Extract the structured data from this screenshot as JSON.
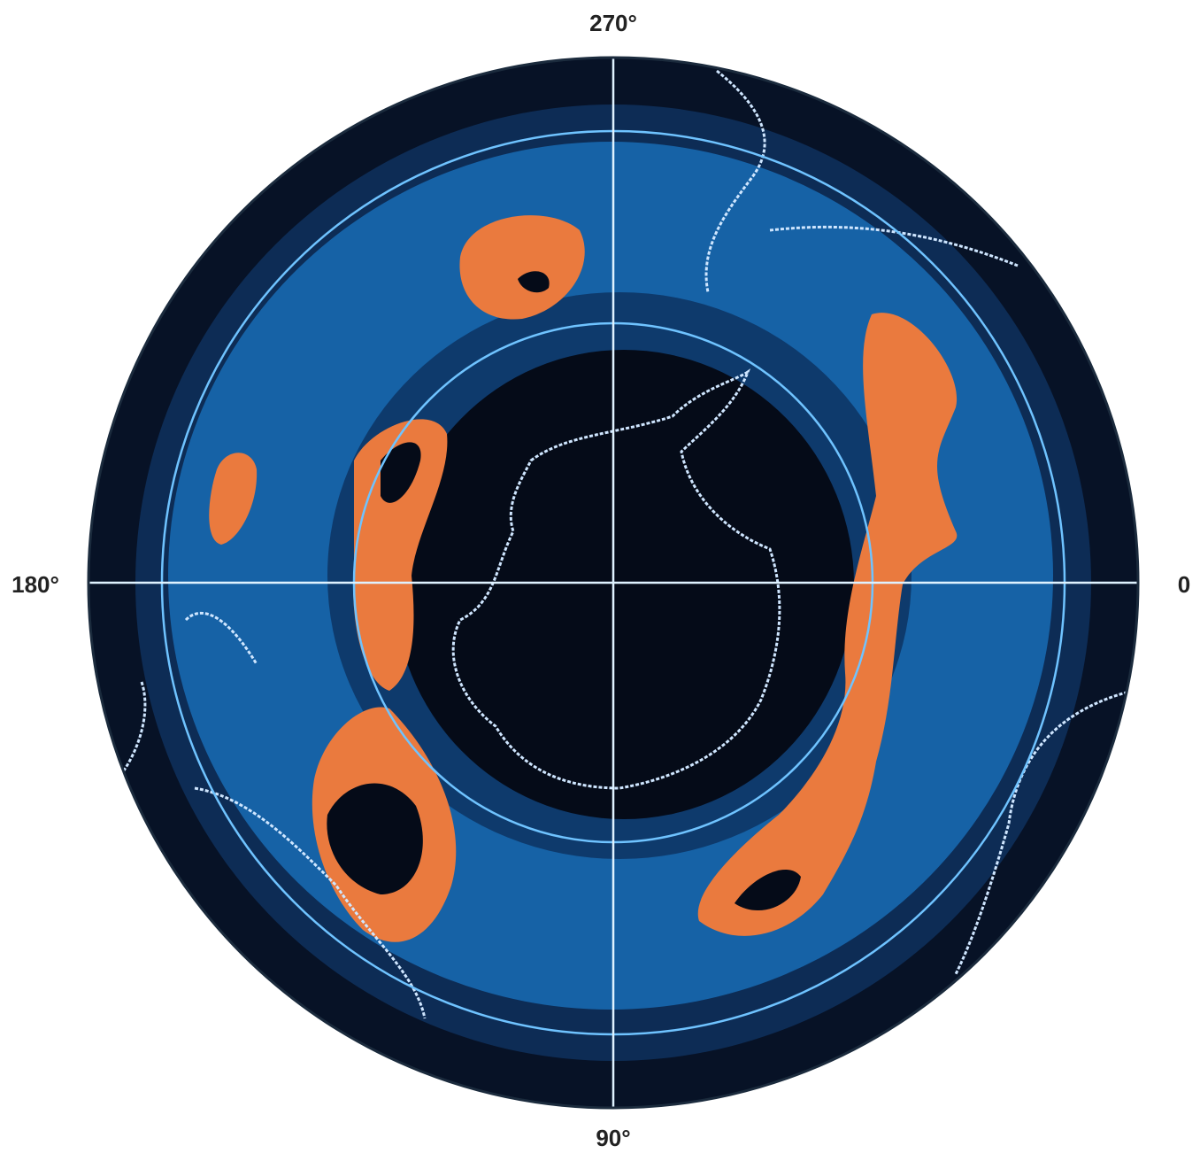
{
  "map": {
    "labels": {
      "top": "270°",
      "bottom": "90°",
      "left": "180°",
      "right": "0"
    }
  }
}
